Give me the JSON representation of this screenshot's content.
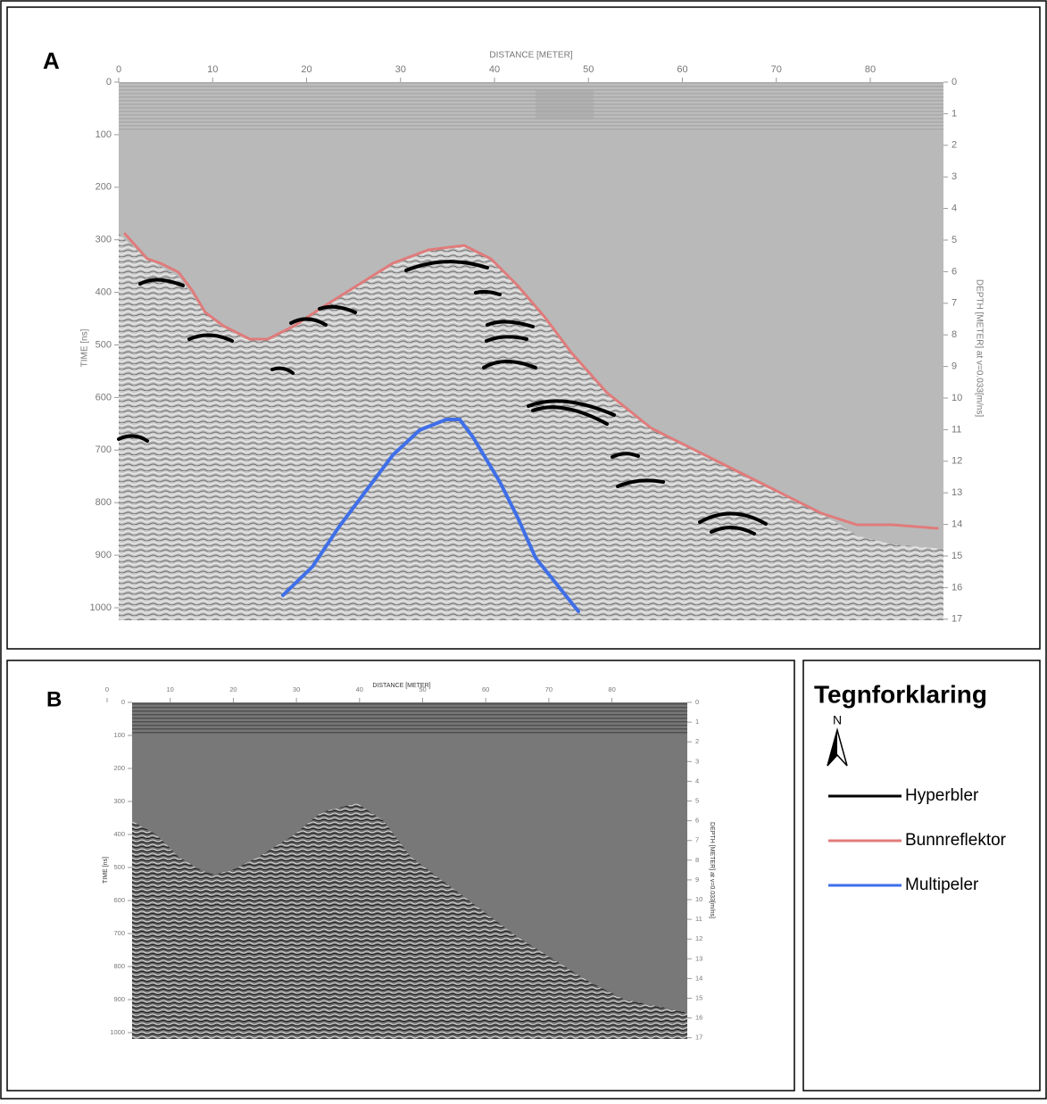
{
  "panels": [
    {
      "label": "A",
      "x_axis_title": "DISTANCE [METER]",
      "y_axis_title": "TIME [ns]",
      "y2_axis_title": "DEPTH [METER] at v=0.033[m/ns]",
      "xticks": [
        0,
        10,
        20,
        30,
        40,
        50,
        60,
        70,
        80
      ],
      "yticks": [
        0,
        100,
        200,
        300,
        400,
        500,
        600,
        700,
        800,
        900,
        1000
      ],
      "y2ticks": [
        0,
        1,
        2,
        3,
        4,
        5,
        6,
        7,
        8,
        9,
        10,
        11,
        12,
        13,
        14,
        15,
        16,
        17
      ]
    },
    {
      "label": "B",
      "x_axis_title": "DISTANCE [METER]",
      "y_axis_title": "TIME [ns]",
      "y2_axis_title": "DEPTH [METER] at v=0.033[m/ns]",
      "xticks": [
        0,
        10,
        20,
        30,
        40,
        50,
        60,
        70,
        80
      ],
      "yticks": [
        0,
        100,
        200,
        300,
        400,
        500,
        600,
        700,
        800,
        900,
        1000
      ],
      "y2ticks": [
        0,
        1,
        2,
        3,
        4,
        5,
        6,
        7,
        8,
        9,
        10,
        11,
        12,
        13,
        14,
        15,
        16,
        17
      ]
    }
  ],
  "legend": {
    "title": "Tegnforklaring",
    "north": "N",
    "items": [
      {
        "label": "Hyperbler",
        "color": "#000000"
      },
      {
        "label": "Bunnreflektor",
        "color": "#e07b7b"
      },
      {
        "label": "Multipeler",
        "color": "#3f6fe8"
      }
    ]
  }
}
